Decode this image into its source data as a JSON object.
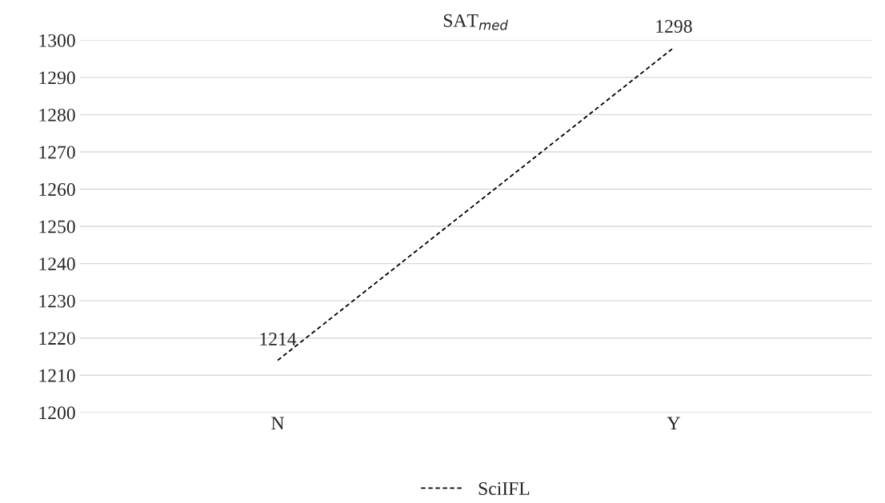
{
  "chart_data": {
    "type": "line",
    "title": "SAT$_{med}$",
    "categories": [
      "N",
      "Y"
    ],
    "series": [
      {
        "name": "SciIFL",
        "color": "#000000",
        "values": [
          1214,
          1298
        ]
      }
    ],
    "ylim": [
      1200,
      1300
    ],
    "yticks": [
      1200,
      1210,
      1220,
      1230,
      1240,
      1250,
      1260,
      1270,
      1280,
      1290,
      1300
    ],
    "grid": "y",
    "legend": "bottom",
    "line_style": "dashed",
    "marker": "none",
    "data_labels": true
  }
}
